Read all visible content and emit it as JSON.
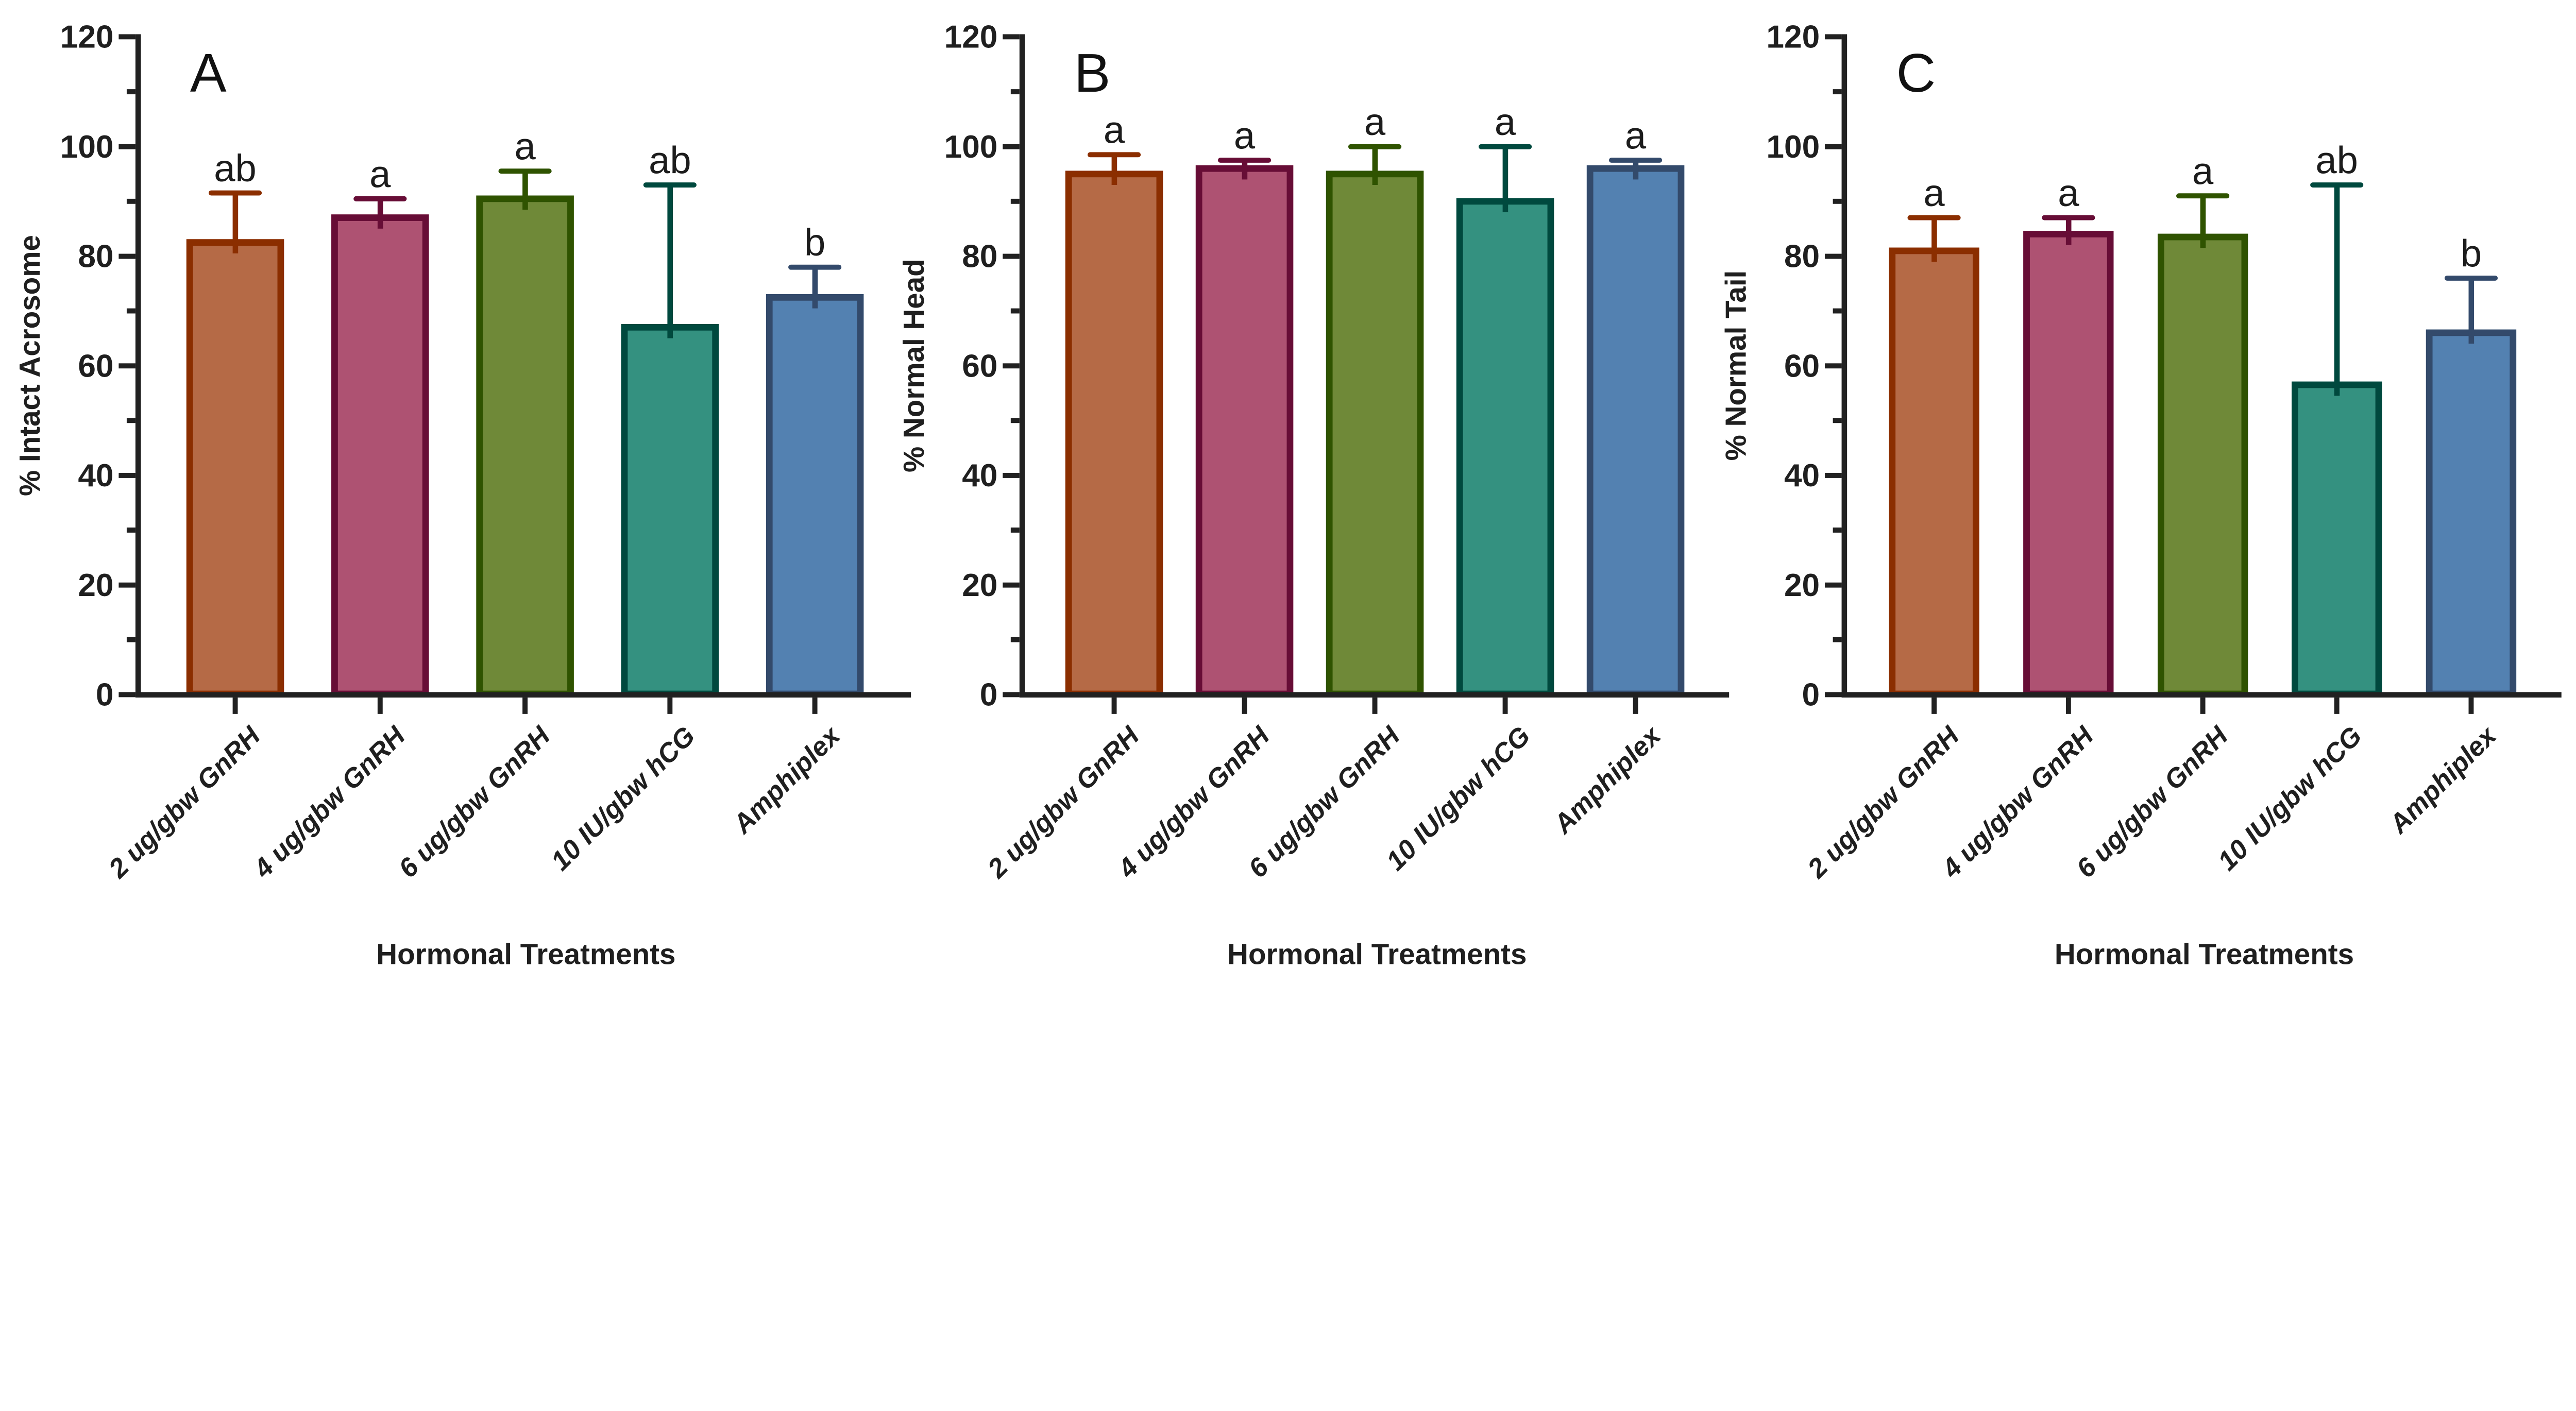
{
  "figure": {
    "xlabel": "Hormonal Treatments",
    "categories": [
      "2 ug/gbw GnRH",
      "4 ug/gbw GnRH",
      "6 ug/gbw GnRH",
      "10 IU/gbw hCG",
      "Amphiplex"
    ],
    "y_tick_labels": [
      "0",
      "20",
      "40",
      "60",
      "80",
      "100",
      "120"
    ],
    "axis_color": "#212121",
    "background_color": "#ffffff"
  },
  "chart_data": [
    {
      "type": "bar",
      "panel_label": "A",
      "title": "",
      "ylabel": "% Intact Acrosome",
      "xlabel": "Hormonal Treatments",
      "categories": [
        "2 ug/gbw GnRH",
        "4 ug/gbw GnRH",
        "6 ug/gbw GnRH",
        "10 IU/gbw hCG",
        "Amphiplex"
      ],
      "values": [
        82.5,
        87,
        90.5,
        67,
        72.5
      ],
      "sd_upper": [
        9,
        3.5,
        5,
        26,
        5.5
      ],
      "sig_letters": [
        "ab",
        "a",
        "a",
        "ab",
        "b"
      ],
      "ylim": [
        0,
        120
      ],
      "ytick_step": 20,
      "yminor_step": 10,
      "grid": "off",
      "legend": "none",
      "bar_fill": [
        "#B56A46",
        "#AE5272",
        "#6F8938",
        "#349180",
        "#5381B1"
      ],
      "bar_edge": [
        "#8B2E00",
        "#670D36",
        "#2F5300",
        "#00493E",
        "#334A6B"
      ]
    },
    {
      "type": "bar",
      "panel_label": "B",
      "title": "",
      "ylabel": "% Normal Head",
      "xlabel": "Hormonal Treatments",
      "categories": [
        "2 ug/gbw GnRH",
        "4 ug/gbw GnRH",
        "6 ug/gbw GnRH",
        "10 IU/gbw hCG",
        "Amphiplex"
      ],
      "values": [
        95,
        96,
        95,
        90,
        96
      ],
      "sd_upper": [
        3.5,
        1.5,
        5,
        10,
        1.5
      ],
      "sig_letters": [
        "a",
        "a",
        "a",
        "a",
        "a"
      ],
      "ylim": [
        0,
        120
      ],
      "ytick_step": 20,
      "yminor_step": 10,
      "grid": "off",
      "legend": "none",
      "bar_fill": [
        "#B56A46",
        "#AE5272",
        "#6F8938",
        "#349180",
        "#5381B1"
      ],
      "bar_edge": [
        "#8B2E00",
        "#670D36",
        "#2F5300",
        "#00493E",
        "#334A6B"
      ]
    },
    {
      "type": "bar",
      "panel_label": "C",
      "title": "",
      "ylabel": "% Normal Tail",
      "xlabel": "Hormonal Treatments",
      "categories": [
        "2 ug/gbw GnRH",
        "4 ug/gbw GnRH",
        "6 ug/gbw GnRH",
        "10 IU/gbw hCG",
        "Amphiplex"
      ],
      "values": [
        81,
        84,
        83.5,
        56.5,
        66
      ],
      "sd_upper": [
        6,
        3,
        7.5,
        36.5,
        10
      ],
      "sig_letters": [
        "a",
        "a",
        "a",
        "ab",
        "b"
      ],
      "ylim": [
        0,
        120
      ],
      "ytick_step": 20,
      "yminor_step": 10,
      "grid": "off",
      "legend": "none",
      "bar_fill": [
        "#B56A46",
        "#AE5272",
        "#6F8938",
        "#349180",
        "#5381B1"
      ],
      "bar_edge": [
        "#8B2E00",
        "#670D36",
        "#2F5300",
        "#00493E",
        "#334A6B"
      ]
    }
  ]
}
